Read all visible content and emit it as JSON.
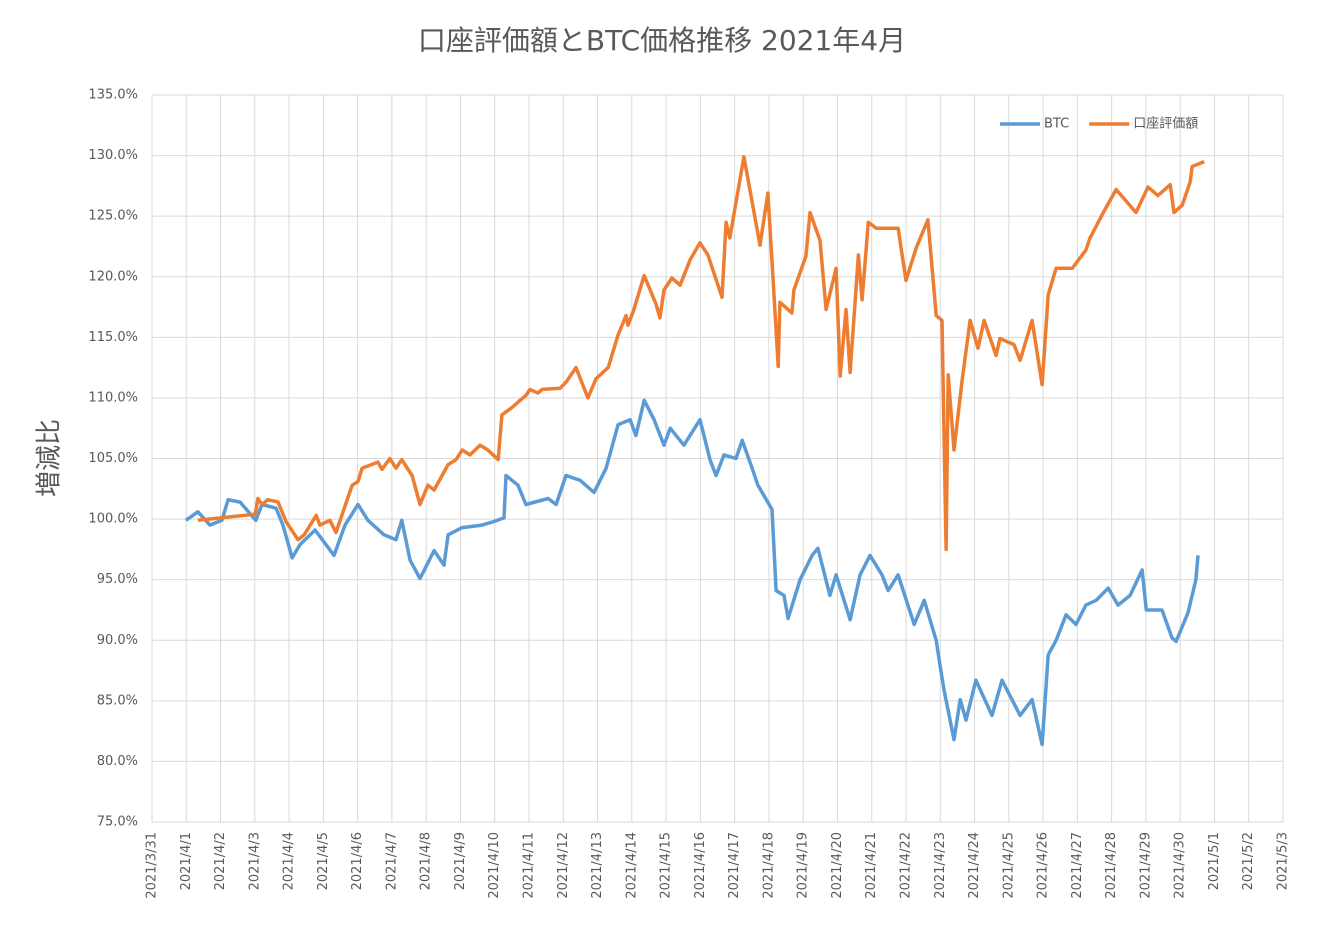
{
  "chart_data": {
    "type": "line",
    "title": "口座評価額とBTC価格推移 2021年4月",
    "y_label": "増減比",
    "grid": true,
    "legend_position": "upper right",
    "xlim": [
      0,
      33
    ],
    "xticks": [
      {
        "value": 0,
        "label": "2021/3/31"
      },
      {
        "value": 1,
        "label": "2021/4/1"
      },
      {
        "value": 2,
        "label": "2021/4/2"
      },
      {
        "value": 3,
        "label": "2021/4/3"
      },
      {
        "value": 4,
        "label": "2021/4/4"
      },
      {
        "value": 5,
        "label": "2021/4/5"
      },
      {
        "value": 6,
        "label": "2021/4/6"
      },
      {
        "value": 7,
        "label": "2021/4/7"
      },
      {
        "value": 8,
        "label": "2021/4/8"
      },
      {
        "value": 9,
        "label": "2021/4/9"
      },
      {
        "value": 10,
        "label": "2021/4/10"
      },
      {
        "value": 11,
        "label": "2021/4/11"
      },
      {
        "value": 12,
        "label": "2021/4/12"
      },
      {
        "value": 13,
        "label": "2021/4/13"
      },
      {
        "value": 14,
        "label": "2021/4/14"
      },
      {
        "value": 15,
        "label": "2021/4/15"
      },
      {
        "value": 16,
        "label": "2021/4/16"
      },
      {
        "value": 17,
        "label": "2021/4/17"
      },
      {
        "value": 18,
        "label": "2021/4/18"
      },
      {
        "value": 19,
        "label": "2021/4/19"
      },
      {
        "value": 20,
        "label": "2021/4/20"
      },
      {
        "value": 21,
        "label": "2021/4/21"
      },
      {
        "value": 22,
        "label": "2021/4/22"
      },
      {
        "value": 23,
        "label": "2021/4/23"
      },
      {
        "value": 24,
        "label": "2021/4/24"
      },
      {
        "value": 25,
        "label": "2021/4/25"
      },
      {
        "value": 26,
        "label": "2021/4/26"
      },
      {
        "value": 27,
        "label": "2021/4/27"
      },
      {
        "value": 28,
        "label": "2021/4/28"
      },
      {
        "value": 29,
        "label": "2021/4/29"
      },
      {
        "value": 30,
        "label": "2021/4/30"
      },
      {
        "value": 31,
        "label": "2021/5/1"
      },
      {
        "value": 32,
        "label": "2021/5/2"
      },
      {
        "value": 33,
        "label": "2021/5/3"
      }
    ],
    "ylim": [
      75,
      135
    ],
    "yticks": [
      {
        "value": 75,
        "label": "75.0%"
      },
      {
        "value": 80,
        "label": "80.0%"
      },
      {
        "value": 85,
        "label": "85.0%"
      },
      {
        "value": 90,
        "label": "90.0%"
      },
      {
        "value": 95,
        "label": "95.0%"
      },
      {
        "value": 100,
        "label": "100.0%"
      },
      {
        "value": 105,
        "label": "105.0%"
      },
      {
        "value": 110,
        "label": "110.0%"
      },
      {
        "value": 115,
        "label": "115.0%"
      },
      {
        "value": 120,
        "label": "120.0%"
      },
      {
        "value": 125,
        "label": "125.0%"
      },
      {
        "value": 130,
        "label": "130.0%"
      },
      {
        "value": 135,
        "label": "135.0%"
      }
    ],
    "series": [
      {
        "name": "BTC",
        "color": "#5b9bd5",
        "x": [
          0.99,
          1.34,
          1.69,
          2.04,
          2.22,
          2.57,
          3.03,
          3.21,
          3.62,
          3.82,
          4.09,
          4.32,
          4.76,
          5.31,
          5.63,
          6.01,
          6.3,
          6.77,
          7.12,
          7.29,
          7.53,
          7.82,
          8.23,
          8.52,
          8.64,
          9.05,
          9.63,
          9.98,
          10.27,
          10.33,
          10.68,
          10.91,
          11.56,
          11.79,
          12.08,
          12.49,
          12.9,
          13.25,
          13.6,
          13.95,
          14.12,
          14.36,
          14.65,
          14.94,
          15.12,
          15.52,
          15.99,
          16.28,
          16.46,
          16.69,
          17.04,
          17.22,
          17.51,
          17.68,
          18.09,
          18.21,
          18.44,
          18.56,
          18.91,
          19.26,
          19.43,
          19.78,
          19.96,
          20.37,
          20.66,
          20.95,
          21.3,
          21.48,
          21.77,
          22.24,
          22.53,
          22.88,
          22.99,
          23.11,
          23.4,
          23.58,
          23.75,
          24.04,
          24.51,
          24.8,
          25.33,
          25.68,
          25.97,
          26.15,
          26.38,
          26.67,
          26.96,
          27.25,
          27.55,
          27.9,
          28.19,
          28.54,
          28.89,
          29.01,
          29.47,
          29.76,
          29.88,
          30.23,
          30.46,
          30.52
        ],
        "values": [
          99.9,
          100.6,
          99.5,
          99.9,
          101.6,
          101.4,
          99.9,
          101.2,
          100.9,
          99.5,
          96.8,
          97.9,
          99.1,
          97.0,
          99.5,
          101.2,
          99.9,
          98.7,
          98.3,
          99.9,
          96.6,
          95.1,
          97.4,
          96.2,
          98.7,
          99.3,
          99.5,
          99.8,
          100.1,
          103.6,
          102.8,
          101.2,
          101.7,
          101.2,
          103.6,
          103.2,
          102.2,
          104.2,
          107.8,
          108.2,
          106.9,
          109.8,
          108.2,
          106.1,
          107.5,
          106.1,
          108.2,
          104.9,
          103.6,
          105.3,
          105.0,
          106.5,
          104.2,
          102.8,
          100.8,
          94.1,
          93.7,
          91.8,
          95.0,
          97.0,
          97.6,
          93.7,
          95.4,
          91.7,
          95.4,
          97.0,
          95.4,
          94.1,
          95.4,
          91.3,
          93.3,
          90.0,
          88.0,
          85.9,
          81.8,
          85.1,
          83.4,
          86.7,
          83.8,
          86.7,
          83.8,
          85.1,
          81.4,
          88.8,
          90.0,
          92.1,
          91.3,
          92.9,
          93.3,
          94.3,
          92.9,
          93.7,
          95.8,
          92.5,
          92.5,
          90.2,
          89.9,
          92.3,
          95.0,
          97.0
        ]
      },
      {
        "name": "口座評価額",
        "color": "#ed7d31",
        "x": [
          1.34,
          3.01,
          3.09,
          3.21,
          3.38,
          3.68,
          3.91,
          4.26,
          4.44,
          4.79,
          4.9,
          5.19,
          5.37,
          5.84,
          6.01,
          6.13,
          6.59,
          6.71,
          6.94,
          7.12,
          7.29,
          7.59,
          7.82,
          8.05,
          8.23,
          8.64,
          8.87,
          9.05,
          9.28,
          9.57,
          9.8,
          10.1,
          10.21,
          10.5,
          10.74,
          10.91,
          11.03,
          11.26,
          11.38,
          11.91,
          12.08,
          12.37,
          12.72,
          12.96,
          13.31,
          13.6,
          13.83,
          13.89,
          14.06,
          14.36,
          14.71,
          14.82,
          14.94,
          15.17,
          15.41,
          15.7,
          15.99,
          16.22,
          16.63,
          16.75,
          16.86,
          17.27,
          17.74,
          17.97,
          18.15,
          18.27,
          18.32,
          18.67,
          18.73,
          19.08,
          19.2,
          19.49,
          19.67,
          19.96,
          20.08,
          20.25,
          20.37,
          20.61,
          20.72,
          20.9,
          21.13,
          21.77,
          22.0,
          22.3,
          22.64,
          22.88,
          23.05,
          23.17,
          23.23,
          23.4,
          23.64,
          23.87,
          24.1,
          24.28,
          24.63,
          24.74,
          25.15,
          25.33,
          25.68,
          25.97,
          26.15,
          26.38,
          26.85,
          27.25,
          27.37,
          27.72,
          28.13,
          28.71,
          29.06,
          29.35,
          29.71,
          29.82,
          30.06,
          30.29,
          30.35,
          30.7
        ],
        "values": [
          99.9,
          100.4,
          101.7,
          101.2,
          101.6,
          101.4,
          99.8,
          98.3,
          98.7,
          100.3,
          99.5,
          99.9,
          98.9,
          102.8,
          103.1,
          104.2,
          104.7,
          104.1,
          105.0,
          104.2,
          104.9,
          103.6,
          101.2,
          102.8,
          102.4,
          104.5,
          104.9,
          105.7,
          105.3,
          106.1,
          105.7,
          104.9,
          108.6,
          109.2,
          109.8,
          110.2,
          110.7,
          110.4,
          110.7,
          110.8,
          111.3,
          112.5,
          110.0,
          111.6,
          112.5,
          115.2,
          116.8,
          116.0,
          117.3,
          120.1,
          117.7,
          116.6,
          118.9,
          119.9,
          119.3,
          121.4,
          122.8,
          121.8,
          118.3,
          124.5,
          123.2,
          129.9,
          122.6,
          126.9,
          118.5,
          112.6,
          117.9,
          117.0,
          118.9,
          121.7,
          125.3,
          123.0,
          117.3,
          120.7,
          111.8,
          117.3,
          112.1,
          121.8,
          118.1,
          124.5,
          124.0,
          124.0,
          119.7,
          122.4,
          124.7,
          116.8,
          116.4,
          97.5,
          111.9,
          105.7,
          111.5,
          116.4,
          114.1,
          116.4,
          113.5,
          114.9,
          114.4,
          113.1,
          116.4,
          111.1,
          118.5,
          120.7,
          120.7,
          122.2,
          123.2,
          125.1,
          127.2,
          125.3,
          127.4,
          126.7,
          127.6,
          125.3,
          125.9,
          127.8,
          129.1,
          129.5
        ]
      }
    ]
  }
}
